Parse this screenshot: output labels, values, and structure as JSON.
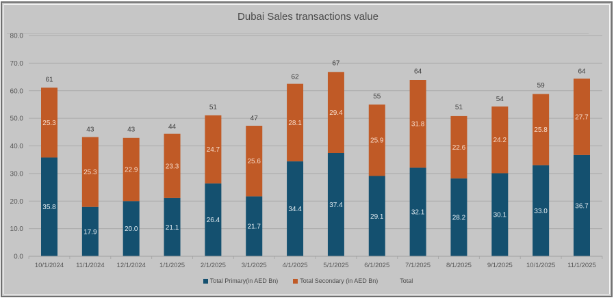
{
  "chart_data": {
    "type": "bar",
    "stacked": true,
    "title": "Dubai Sales transactions value",
    "xlabel": "",
    "ylabel": "",
    "ylim": [
      0,
      80
    ],
    "yticks": [
      "0.0",
      "10.0",
      "20.0",
      "30.0",
      "40.0",
      "50.0",
      "60.0",
      "70.0",
      "80.0"
    ],
    "grid": true,
    "legend_position": "bottom",
    "categories": [
      "10/1/2024",
      "11/1/2024",
      "12/1/2024",
      "1/1/2025",
      "2/1/2025",
      "3/1/2025",
      "4/1/2025",
      "5/1/2025",
      "6/1/2025",
      "7/1/2025",
      "8/1/2025",
      "9/1/2025",
      "10/1/2025",
      "11/1/2025"
    ],
    "series": [
      {
        "name": "Total Primary(in AED Bn)",
        "color": "#14506f",
        "values": [
          35.8,
          17.9,
          20.0,
          21.1,
          26.4,
          21.7,
          34.4,
          37.4,
          29.1,
          32.1,
          28.2,
          30.1,
          33.0,
          36.7
        ],
        "labels": [
          "35.8",
          "17.9",
          "20.0",
          "21.1",
          "26.4",
          "21.7",
          "34.4",
          "37.4",
          "29.1",
          "32.1",
          "28.2",
          "30.1",
          "33.0",
          "36.7"
        ]
      },
      {
        "name": "Total Secondary (in AED Bn)",
        "color": "#c05a26",
        "values": [
          25.3,
          25.3,
          22.9,
          23.3,
          24.7,
          25.6,
          28.1,
          29.4,
          25.9,
          31.8,
          22.6,
          24.2,
          25.8,
          27.7
        ],
        "labels": [
          "25.3",
          "25.3",
          "22.9",
          "23.3",
          "24.7",
          "25.6",
          "28.1",
          "29.4",
          "25.9",
          "31.8",
          "22.6",
          "24.2",
          "25.8",
          "27.7"
        ]
      },
      {
        "name": "Total",
        "color": "none",
        "values": [
          61,
          43,
          43,
          44,
          51,
          47,
          62,
          67,
          55,
          64,
          51,
          54,
          59,
          64
        ],
        "labels": [
          "61",
          "43",
          "43",
          "44",
          "51",
          "47",
          "62",
          "67",
          "55",
          "64",
          "51",
          "54",
          "59",
          "64"
        ]
      }
    ]
  }
}
